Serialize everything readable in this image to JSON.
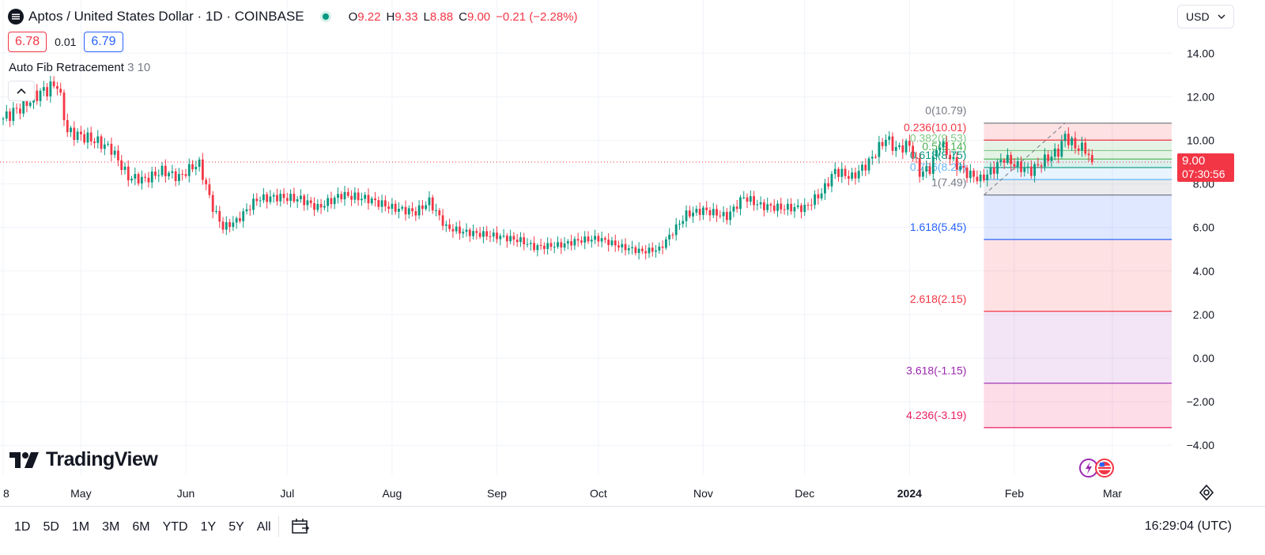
{
  "header": {
    "title": "Aptos / United States Dollar · 1D · COINBASE",
    "ohlc": [
      {
        "k": "O",
        "v": "9.22"
      },
      {
        "k": "H",
        "v": "9.33"
      },
      {
        "k": "L",
        "v": "8.88"
      },
      {
        "k": "C",
        "v": "9.00"
      }
    ],
    "change": "−0.21 (−2.28%)"
  },
  "bidask": {
    "sell": "6.78",
    "spread": "0.01",
    "buy": "6.79"
  },
  "indicator": {
    "name": "Auto Fib Retracement",
    "params": "3 10"
  },
  "currency": "USD",
  "last_price": {
    "price": "9.00",
    "countdown": "07:30:56"
  },
  "toolbar": {
    "ranges": [
      "1D",
      "5D",
      "1M",
      "3M",
      "6M",
      "YTD",
      "1Y",
      "5Y",
      "All"
    ],
    "clock": "16:29:04 (UTC)"
  },
  "branding": "TradingView",
  "colors": {
    "up": "#089981",
    "down": "#f23645",
    "accent": "#2962ff"
  },
  "chart_data": {
    "type": "candlestick",
    "y_ticks": [
      "14.00",
      "12.00",
      "10.00",
      "8.00",
      "6.00",
      "4.00",
      "2.00",
      "0.00",
      "−2.00",
      "−4.00"
    ],
    "ylim": [
      -4.5,
      15.2
    ],
    "x_labels": [
      {
        "label": "8",
        "date": "2023-04-08"
      },
      {
        "label": "May",
        "date": "2023-05-01"
      },
      {
        "label": "Jun",
        "date": "2023-06-01"
      },
      {
        "label": "Jul",
        "date": "2023-07-01"
      },
      {
        "label": "Aug",
        "date": "2023-08-01"
      },
      {
        "label": "Sep",
        "date": "2023-09-01"
      },
      {
        "label": "Oct",
        "date": "2023-10-01"
      },
      {
        "label": "Nov",
        "date": "2023-11-01"
      },
      {
        "label": "Dec",
        "date": "2023-12-01"
      },
      {
        "label": "2024",
        "date": "2024-01-01",
        "bold": true
      },
      {
        "label": "Feb",
        "date": "2024-02-01"
      },
      {
        "label": "Mar",
        "date": "2024-03-01"
      }
    ],
    "close_anchors": [
      [
        "2023-04-08",
        11.0
      ],
      [
        "2023-04-14",
        11.6
      ],
      [
        "2023-04-18",
        12.1
      ],
      [
        "2023-04-24",
        12.6
      ],
      [
        "2023-04-27",
        10.4
      ],
      [
        "2023-05-01",
        10.2
      ],
      [
        "2023-05-05",
        10.0
      ],
      [
        "2023-05-10",
        9.6
      ],
      [
        "2023-05-15",
        8.3
      ],
      [
        "2023-05-20",
        8.2
      ],
      [
        "2023-05-25",
        8.6
      ],
      [
        "2023-05-30",
        8.3
      ],
      [
        "2023-06-03",
        8.8
      ],
      [
        "2023-06-05",
        8.9
      ],
      [
        "2023-06-09",
        6.9
      ],
      [
        "2023-06-12",
        6.0
      ],
      [
        "2023-06-16",
        6.3
      ],
      [
        "2023-06-22",
        7.3
      ],
      [
        "2023-06-28",
        7.4
      ],
      [
        "2023-07-05",
        7.3
      ],
      [
        "2023-07-10",
        6.9
      ],
      [
        "2023-07-17",
        7.5
      ],
      [
        "2023-07-25",
        7.3
      ],
      [
        "2023-08-01",
        6.9
      ],
      [
        "2023-08-08",
        6.7
      ],
      [
        "2023-08-12",
        7.2
      ],
      [
        "2023-08-17",
        6.0
      ],
      [
        "2023-08-22",
        5.8
      ],
      [
        "2023-09-01",
        5.6
      ],
      [
        "2023-09-08",
        5.4
      ],
      [
        "2023-09-12",
        5.1
      ],
      [
        "2023-09-20",
        5.2
      ],
      [
        "2023-09-25",
        5.4
      ],
      [
        "2023-10-01",
        5.5
      ],
      [
        "2023-10-08",
        5.1
      ],
      [
        "2023-10-14",
        4.9
      ],
      [
        "2023-10-19",
        5.0
      ],
      [
        "2023-10-24",
        6.0
      ],
      [
        "2023-10-27",
        6.6
      ],
      [
        "2023-11-01",
        6.8
      ],
      [
        "2023-11-08",
        6.5
      ],
      [
        "2023-11-13",
        7.4
      ],
      [
        "2023-11-18",
        7.0
      ],
      [
        "2023-11-24",
        6.9
      ],
      [
        "2023-12-01",
        6.9
      ],
      [
        "2023-12-06",
        7.6
      ],
      [
        "2023-12-10",
        8.6
      ],
      [
        "2023-12-15",
        8.3
      ],
      [
        "2023-12-20",
        9.0
      ],
      [
        "2023-12-25",
        10.1
      ],
      [
        "2023-12-28",
        9.6
      ],
      [
        "2024-01-01",
        9.8
      ],
      [
        "2024-01-04",
        8.5
      ],
      [
        "2024-01-07",
        8.7
      ],
      [
        "2024-01-10",
        9.9
      ],
      [
        "2024-01-14",
        9.0
      ],
      [
        "2024-01-18",
        8.5
      ],
      [
        "2024-01-22",
        8.2
      ],
      [
        "2024-01-26",
        8.7
      ],
      [
        "2024-01-29",
        9.2
      ],
      [
        "2024-02-02",
        8.8
      ],
      [
        "2024-02-06",
        8.6
      ],
      [
        "2024-02-10",
        9.1
      ],
      [
        "2024-02-14",
        9.5
      ],
      [
        "2024-02-16",
        10.2
      ],
      [
        "2024-02-19",
        9.7
      ],
      [
        "2024-02-22",
        9.6
      ],
      [
        "2024-02-24",
        9.0
      ]
    ],
    "last_close": 9.0,
    "fib": {
      "anchor_low": {
        "date": "2024-01-23",
        "value": 7.49
      },
      "anchor_high": {
        "date": "2024-02-16",
        "value": 10.79
      },
      "levels": [
        {
          "label": "0(10.79)",
          "value": 10.79,
          "color": "#787b86",
          "fill": "rgba(242,54,69,0.15)"
        },
        {
          "label": "0.236(10.01)",
          "value": 10.01,
          "color": "#f23645",
          "fill": "rgba(76,175,80,0.15)"
        },
        {
          "label": "0.382(9.53)",
          "value": 9.53,
          "color": "#81c784",
          "fill": "rgba(76,175,80,0.15)"
        },
        {
          "label": "0.5(9.14)",
          "value": 9.14,
          "color": "#4caf50",
          "fill": "rgba(8,153,129,0.15)"
        },
        {
          "label": "0.618(8.75)",
          "value": 8.75,
          "color": "#089981",
          "fill": "rgba(100,181,246,0.15)"
        },
        {
          "label": "0.786(8.20)",
          "value": 8.2,
          "color": "#64b5f6",
          "fill": "rgba(120,123,134,0.15)"
        },
        {
          "label": "1(7.49)",
          "value": 7.49,
          "color": "#787b86",
          "fill": "rgba(41,98,255,0.15)"
        },
        {
          "label": "1.618(5.45)",
          "value": 5.45,
          "color": "#2962ff",
          "fill": "rgba(242,54,69,0.15)"
        },
        {
          "label": "2.618(2.15)",
          "value": 2.15,
          "color": "#f23645",
          "fill": "rgba(156,39,176,0.12)"
        },
        {
          "label": "3.618(-1.15)",
          "value": -1.15,
          "color": "#9c27b0",
          "fill": "rgba(233,30,99,0.15)"
        },
        {
          "label": "4.236(-3.19)",
          "value": -3.19,
          "color": "#e91e63",
          "fill": null
        }
      ]
    }
  }
}
